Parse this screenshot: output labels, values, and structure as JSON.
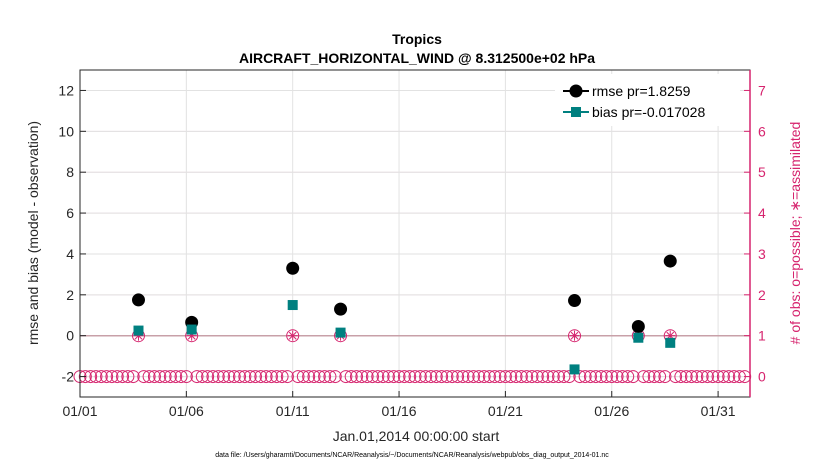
{
  "chart_data": {
    "type": "scatter",
    "title": "Tropics",
    "subtitle": "AIRCRAFT_HORIZONTAL_WIND @ 8.312500e+02 hPa",
    "xlabel": "Jan.01,2014 00:00:00 start",
    "ylabel_left": "rmse and bias (model - observation)",
    "ylabel_right": "# of obs: o=possible; ∗=assimilated",
    "footer": "data file: /Users/gharamti/Documents/NCAR/Reanalysis/~/Documents/NCAR/Reanalysis/webpub/obs_diag_output_2014-01.nc",
    "xlim": [
      1,
      32.5
    ],
    "ylim_left": [
      -3,
      13
    ],
    "ylim_right": [
      -0.5,
      7.5
    ],
    "x_ticks": [
      1,
      6,
      11,
      16,
      21,
      26,
      31
    ],
    "x_tick_labels": [
      "01/01",
      "01/06",
      "01/11",
      "01/16",
      "01/21",
      "01/26",
      "01/31"
    ],
    "y_ticks_left": [
      -2,
      0,
      2,
      4,
      6,
      8,
      10,
      12
    ],
    "y_tick_labels_left": [
      "-2",
      "0",
      "2",
      "4",
      "6",
      "8",
      "10",
      "12"
    ],
    "y_ticks_right": [
      0,
      1,
      2,
      3,
      4,
      5,
      6,
      7
    ],
    "y_tick_labels_right": [
      "0",
      "1",
      "2",
      "3",
      "4",
      "5",
      "6",
      "7"
    ],
    "grid": true,
    "legend_position": "top-right",
    "series": [
      {
        "name": "rmse pr=1.8259",
        "axis": "left",
        "color": "#000000",
        "marker": "circle",
        "x": [
          3.75,
          6.25,
          11.0,
          13.25,
          24.25,
          27.25,
          28.75
        ],
        "y": [
          1.75,
          0.65,
          3.3,
          1.3,
          1.72,
          0.45,
          3.65
        ]
      },
      {
        "name": "bias pr=-0.017028",
        "axis": "left",
        "color": "#008080",
        "marker": "square",
        "x": [
          3.75,
          6.25,
          11.0,
          13.25,
          24.25,
          27.25,
          28.75
        ],
        "y": [
          0.25,
          0.3,
          1.5,
          0.15,
          -1.65,
          -0.1,
          -0.35
        ]
      },
      {
        "name": "# of obs possible",
        "axis": "right",
        "color": "#d6246e",
        "marker": "open-circle",
        "x_start": 1.0,
        "x_step": 0.25,
        "x_end": 32.25,
        "default_value": 0,
        "overrides_x": [
          3.75,
          6.25,
          11.0,
          13.25,
          24.25,
          27.25,
          28.75
        ],
        "overrides_y": [
          1,
          1,
          1,
          1,
          1,
          1,
          1
        ]
      },
      {
        "name": "# of obs assimilated",
        "axis": "right",
        "color": "#d6246e",
        "marker": "asterisk",
        "x": [
          3.75,
          6.25,
          11.0,
          13.25,
          24.25,
          27.25,
          28.75
        ],
        "y": [
          1,
          1,
          1,
          1,
          1,
          1,
          1
        ]
      }
    ],
    "colors": {
      "right_axis": "#d6246e",
      "zero_line": "#c8a0a8",
      "grid": "#e2e2e2",
      "right_grid": "#f5dbe4"
    }
  }
}
